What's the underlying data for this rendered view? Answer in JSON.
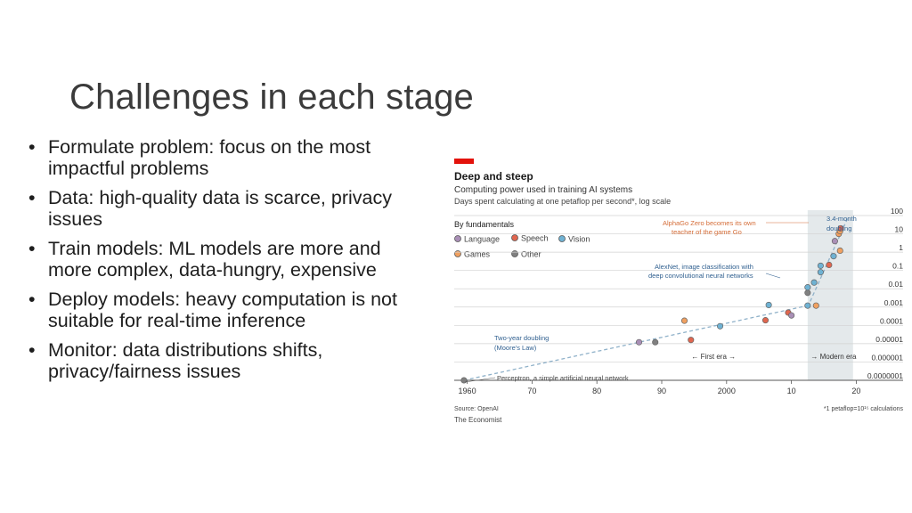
{
  "slide": {
    "title": "Challenges in each stage",
    "bullet_marker": "•",
    "bullets": [
      "Formulate problem: focus on the most impactful problems",
      "Data: high-quality data is scarce, privacy issues",
      "Train models: ML models are more and more complex, data-hungry, expensive",
      "Deploy models: heavy computation is not suitable for real-time inference",
      "Monitor: data distributions shifts, privacy/fairness issues"
    ]
  },
  "colors": {
    "accent_red": "#e3120b",
    "Language": "#a98fb6",
    "Speech": "#e0664f",
    "Vision": "#6fb2d3",
    "Games": "#f0a060",
    "Other": "#808080",
    "annotation": "#d56d38",
    "trend": "#8fb1c9",
    "modern_band": "#e4e9eb"
  },
  "chart_data": {
    "type": "scatter",
    "title": "Deep and steep",
    "subtitle": "Computing power used in training AI systems",
    "subtitle2": "Days spent calculating at one petaflop per second*, log scale",
    "legend_title": "By fundamentals",
    "legend": [
      "Language",
      "Speech",
      "Vision",
      "Games",
      "Other"
    ],
    "y_scale": "log",
    "ylim": [
      1e-07,
      100
    ],
    "y_ticks": [
      {
        "v": 100,
        "label": "100"
      },
      {
        "v": 10,
        "label": "10"
      },
      {
        "v": 1,
        "label": "1"
      },
      {
        "v": 0.1,
        "label": "0.1"
      },
      {
        "v": 0.01,
        "label": "0.01"
      },
      {
        "v": 0.001,
        "label": "0.001"
      },
      {
        "v": 0.0001,
        "label": "0.0001"
      },
      {
        "v": 1e-05,
        "label": "0.00001"
      },
      {
        "v": 1e-06,
        "label": "0.000001"
      },
      {
        "v": 1e-07,
        "label": "0.0000001"
      }
    ],
    "xlim": [
      1958,
      2022
    ],
    "x_ticks": [
      {
        "v": 1960,
        "label": "1960"
      },
      {
        "v": 1970,
        "label": "70"
      },
      {
        "v": 1980,
        "label": "80"
      },
      {
        "v": 1990,
        "label": "90"
      },
      {
        "v": 2000,
        "label": "2000"
      },
      {
        "v": 2010,
        "label": "10"
      },
      {
        "v": 2020,
        "label": "20"
      }
    ],
    "eras": [
      {
        "label": "← First era →",
        "x": 1998
      },
      {
        "label": "→ Modern era",
        "x": 2016.5
      }
    ],
    "modern_era_start": 2012.5,
    "points": [
      {
        "x": 1959.5,
        "y": 1e-07,
        "cat": "Other"
      },
      {
        "x": 1986.5,
        "y": 1.2e-05,
        "cat": "Language"
      },
      {
        "x": 1989,
        "y": 1.2e-05,
        "cat": "Other"
      },
      {
        "x": 1994.5,
        "y": 1.6e-05,
        "cat": "Speech"
      },
      {
        "x": 1993.5,
        "y": 0.00018,
        "cat": "Games"
      },
      {
        "x": 1999,
        "y": 9e-05,
        "cat": "Vision"
      },
      {
        "x": 2006,
        "y": 0.00019,
        "cat": "Speech"
      },
      {
        "x": 2009.5,
        "y": 0.0005,
        "cat": "Speech"
      },
      {
        "x": 2010,
        "y": 0.00035,
        "cat": "Language"
      },
      {
        "x": 2006.5,
        "y": 0.0013,
        "cat": "Vision"
      },
      {
        "x": 2012.5,
        "y": 0.0012,
        "cat": "Vision"
      },
      {
        "x": 2013.8,
        "y": 0.0012,
        "cat": "Games"
      },
      {
        "x": 2012.5,
        "y": 0.006,
        "cat": "Other"
      },
      {
        "x": 2012.5,
        "y": 0.012,
        "cat": "Vision"
      },
      {
        "x": 2013.5,
        "y": 0.022,
        "cat": "Vision"
      },
      {
        "x": 2014.5,
        "y": 0.08,
        "cat": "Vision"
      },
      {
        "x": 2014.5,
        "y": 0.18,
        "cat": "Vision"
      },
      {
        "x": 2015.8,
        "y": 0.2,
        "cat": "Speech"
      },
      {
        "x": 2016.5,
        "y": 0.6,
        "cat": "Vision"
      },
      {
        "x": 2016.7,
        "y": 4,
        "cat": "Language"
      },
      {
        "x": 2017.5,
        "y": 1.2,
        "cat": "Games"
      },
      {
        "x": 2017.3,
        "y": 10,
        "cat": "Games"
      },
      {
        "x": 2017.5,
        "y": 14,
        "cat": "Games"
      },
      {
        "x": 2017.6,
        "y": 20,
        "cat": "Speech"
      }
    ],
    "trendlines": [
      {
        "name": "Two-year doubling (Moore's Law)",
        "from": [
          1959.5,
          1e-07
        ],
        "to": [
          2012.5,
          0.0012
        ]
      },
      {
        "name": "3.4-month doubling",
        "from": [
          2012.5,
          0.001
        ],
        "to": [
          2018.8,
          90
        ]
      }
    ],
    "annotations": {
      "alphago": [
        "AlphaGo Zero becomes its own",
        "teacher of the game Go"
      ],
      "alexnet": [
        "AlexNet, image classification with",
        "deep convolutional neural networks"
      ],
      "moore": [
        "Two-year doubling",
        "(Moore's Law)"
      ],
      "perceptron": "Perceptron, a simple artificial neural network",
      "fast": [
        "3.4-month",
        "doubling"
      ]
    },
    "source": "Source: OpenAI",
    "brand": "The Economist",
    "footnote": "*1 petaflop=10¹⁵ calculations"
  }
}
